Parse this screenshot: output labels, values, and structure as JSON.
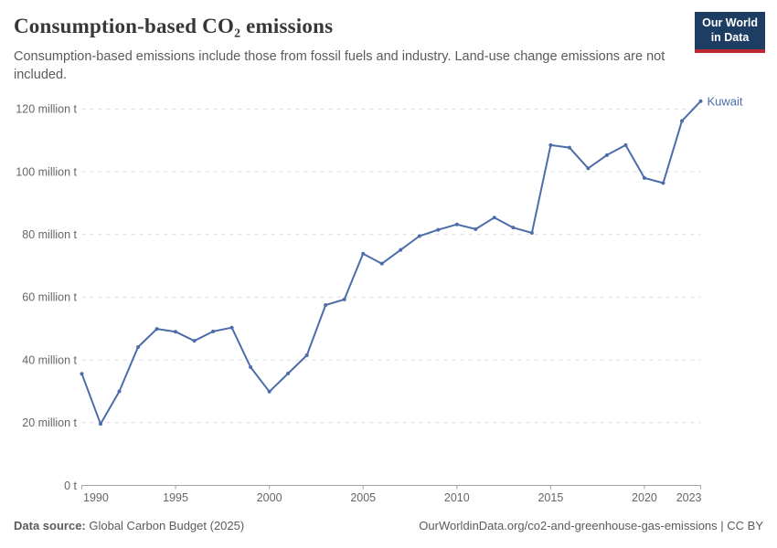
{
  "header": {
    "title": "Consumption-based CO₂ emissions",
    "subtitle": "Consumption-based emissions include those from fossil fuels and industry. Land-use change emissions are not included.",
    "logo": {
      "line1": "Our World",
      "line2": "in Data"
    }
  },
  "chart_data": {
    "type": "line",
    "title": "Consumption-based CO₂ emissions",
    "entity": "Kuwait",
    "unit": "million t",
    "x": [
      1990,
      1991,
      1992,
      1993,
      1994,
      1995,
      1996,
      1997,
      1998,
      1999,
      2000,
      2001,
      2002,
      2003,
      2004,
      2005,
      2006,
      2007,
      2008,
      2009,
      2010,
      2011,
      2012,
      2013,
      2014,
      2015,
      2016,
      2017,
      2018,
      2019,
      2020,
      2021,
      2022,
      2023
    ],
    "series": [
      {
        "name": "Kuwait",
        "values": [
          35.6,
          19.6,
          30.0,
          44.1,
          49.9,
          49.0,
          46.1,
          49.1,
          50.3,
          37.7,
          29.9,
          35.7,
          41.5,
          57.5,
          59.3,
          73.9,
          70.7,
          75.1,
          79.5,
          81.5,
          83.2,
          81.7,
          85.4,
          82.2,
          80.5,
          108.5,
          107.7,
          101.1,
          105.3,
          108.5,
          98.0,
          96.4,
          116.2,
          122.5
        ]
      }
    ],
    "xlim": [
      1990,
      2023
    ],
    "ylim": [
      0,
      125
    ],
    "x_ticks": [
      1990,
      1995,
      2000,
      2005,
      2010,
      2015,
      2020,
      2023
    ],
    "y_ticks": [
      0,
      20,
      40,
      60,
      80,
      100,
      120
    ],
    "y_tick_labels": [
      "0 t",
      "20 million t",
      "40 million t",
      "60 million t",
      "80 million t",
      "100 million t",
      "120 million t"
    ],
    "grid": "horizontal-dashed",
    "legend_position": "end-of-line-label",
    "line_color": "#4d6da9",
    "axis_text_color": "#666666",
    "grid_color": "#dcdcdc",
    "axis_line_color": "#a3a3a3"
  },
  "footer": {
    "source_label": "Data source:",
    "source_value": " Global Carbon Budget (2025)",
    "url_text": "OurWorldinData.org/co2-and-greenhouse-gas-emissions | CC BY"
  }
}
